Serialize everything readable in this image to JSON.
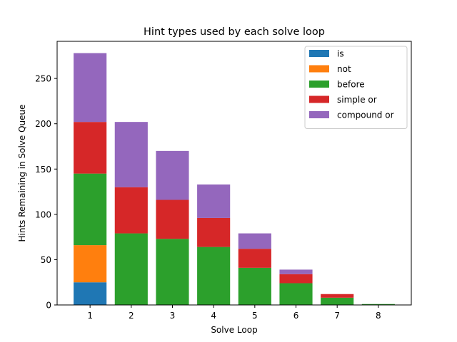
{
  "chart_data": {
    "type": "bar",
    "stacked": true,
    "title": "Hint types used by each solve loop",
    "xlabel": "Solve Loop",
    "ylabel": "Hints Remaining in Solve Queue",
    "categories": [
      "1",
      "2",
      "3",
      "4",
      "5",
      "6",
      "7",
      "8"
    ],
    "ylim": [
      0,
      291
    ],
    "yticks": [
      0,
      50,
      100,
      150,
      200,
      250
    ],
    "grid": false,
    "legend_position": "top-right",
    "series": [
      {
        "name": "is",
        "color": "#1f77b4",
        "values": [
          25,
          0,
          0,
          0,
          0,
          0,
          0,
          0
        ]
      },
      {
        "name": "not",
        "color": "#ff7f0e",
        "values": [
          41,
          0,
          0,
          0,
          0,
          0,
          0,
          0
        ]
      },
      {
        "name": "before",
        "color": "#2ca02c",
        "values": [
          79,
          79,
          73,
          64,
          41,
          24,
          8,
          1
        ]
      },
      {
        "name": "simple or",
        "color": "#d62728",
        "values": [
          57,
          51,
          43,
          32,
          21,
          10,
          4,
          0
        ]
      },
      {
        "name": "compound or",
        "color": "#9467bd",
        "values": [
          76,
          72,
          54,
          37,
          17,
          5,
          0,
          0
        ]
      }
    ]
  }
}
